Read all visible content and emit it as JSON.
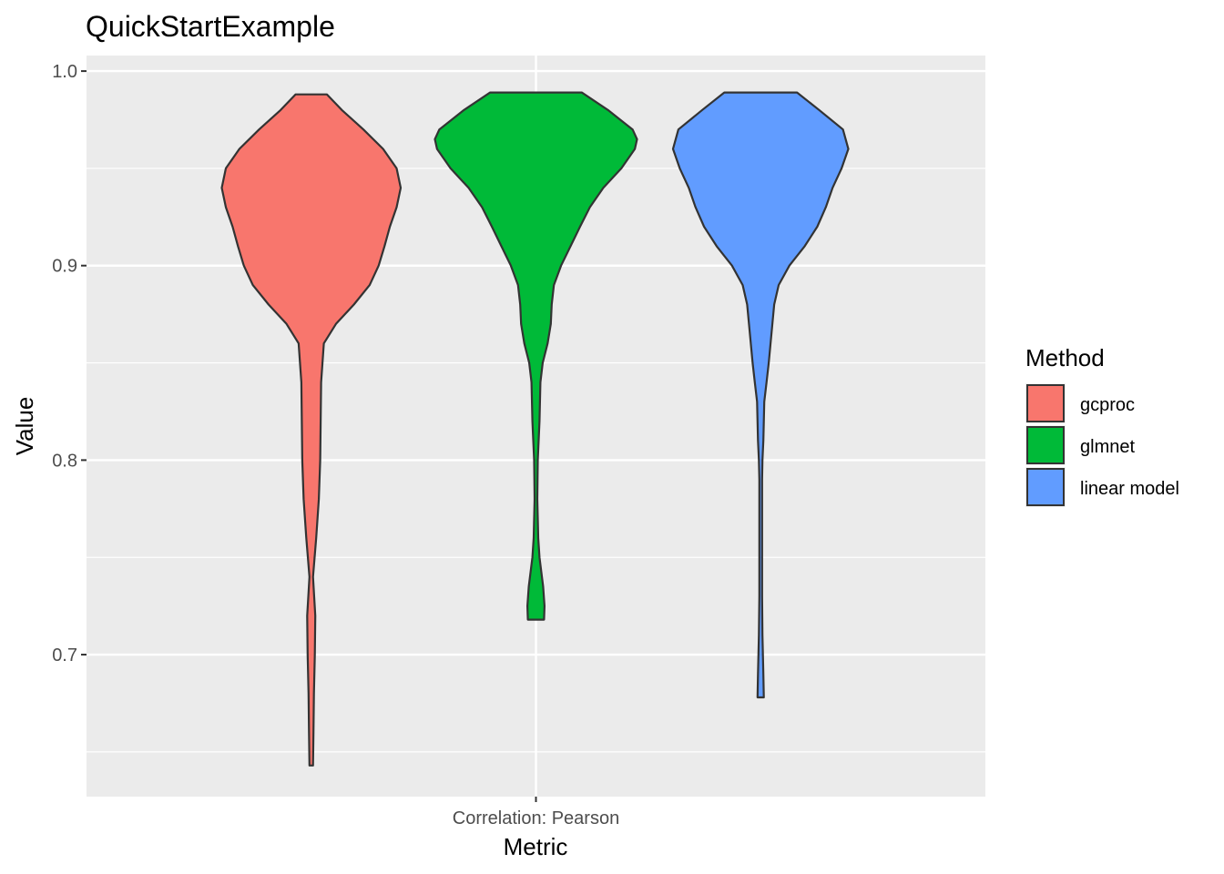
{
  "chart_data": {
    "type": "violin",
    "title": "QuickStartExample",
    "xlabel": "Metric",
    "ylabel": "Value",
    "categories": [
      "Correlation: Pearson"
    ],
    "ylim": [
      0.627,
      1.008
    ],
    "y_ticks": [
      "0.7",
      "0.8",
      "0.9",
      "1.0"
    ],
    "grid": true,
    "legend": {
      "title": "Method",
      "position": "right",
      "entries": [
        "gcproc",
        "glmnet",
        "linear model"
      ]
    },
    "series": [
      {
        "name": "gcproc",
        "color": "#F8766D",
        "min": 0.643,
        "max": 0.988,
        "profile": [
          [
            0.643,
            0.004
          ],
          [
            0.66,
            0.005
          ],
          [
            0.68,
            0.006
          ],
          [
            0.7,
            0.008
          ],
          [
            0.72,
            0.009
          ],
          [
            0.74,
            0.004
          ],
          [
            0.76,
            0.011
          ],
          [
            0.78,
            0.017
          ],
          [
            0.8,
            0.02
          ],
          [
            0.82,
            0.021
          ],
          [
            0.84,
            0.022
          ],
          [
            0.86,
            0.028
          ],
          [
            0.87,
            0.055
          ],
          [
            0.88,
            0.095
          ],
          [
            0.89,
            0.13
          ],
          [
            0.9,
            0.15
          ],
          [
            0.91,
            0.163
          ],
          [
            0.92,
            0.175
          ],
          [
            0.93,
            0.19
          ],
          [
            0.94,
            0.199
          ],
          [
            0.95,
            0.19
          ],
          [
            0.96,
            0.16
          ],
          [
            0.97,
            0.116
          ],
          [
            0.98,
            0.068
          ],
          [
            0.988,
            0.035
          ]
        ]
      },
      {
        "name": "glmnet",
        "color": "#00BA38",
        "min": 0.718,
        "max": 0.989,
        "profile": [
          [
            0.718,
            0.018
          ],
          [
            0.725,
            0.019
          ],
          [
            0.735,
            0.016
          ],
          [
            0.75,
            0.008
          ],
          [
            0.76,
            0.005
          ],
          [
            0.78,
            0.003
          ],
          [
            0.8,
            0.004
          ],
          [
            0.82,
            0.008
          ],
          [
            0.84,
            0.01
          ],
          [
            0.85,
            0.015
          ],
          [
            0.86,
            0.026
          ],
          [
            0.87,
            0.033
          ],
          [
            0.88,
            0.035
          ],
          [
            0.89,
            0.04
          ],
          [
            0.9,
            0.056
          ],
          [
            0.91,
            0.077
          ],
          [
            0.92,
            0.098
          ],
          [
            0.93,
            0.12
          ],
          [
            0.94,
            0.15
          ],
          [
            0.95,
            0.19
          ],
          [
            0.96,
            0.22
          ],
          [
            0.965,
            0.225
          ],
          [
            0.97,
            0.215
          ],
          [
            0.98,
            0.16
          ],
          [
            0.989,
            0.102
          ]
        ]
      },
      {
        "name": "linear model",
        "color": "#619CFF",
        "min": 0.678,
        "max": 0.989,
        "profile": [
          [
            0.678,
            0.007
          ],
          [
            0.69,
            0.006
          ],
          [
            0.71,
            0.004
          ],
          [
            0.73,
            0.003
          ],
          [
            0.75,
            0.002
          ],
          [
            0.77,
            0.002
          ],
          [
            0.79,
            0.002
          ],
          [
            0.8,
            0.004
          ],
          [
            0.81,
            0.006
          ],
          [
            0.82,
            0.007
          ],
          [
            0.83,
            0.008
          ],
          [
            0.84,
            0.013
          ],
          [
            0.85,
            0.018
          ],
          [
            0.86,
            0.022
          ],
          [
            0.87,
            0.026
          ],
          [
            0.88,
            0.03
          ],
          [
            0.89,
            0.04
          ],
          [
            0.9,
            0.064
          ],
          [
            0.91,
            0.098
          ],
          [
            0.92,
            0.126
          ],
          [
            0.93,
            0.145
          ],
          [
            0.94,
            0.16
          ],
          [
            0.95,
            0.18
          ],
          [
            0.96,
            0.195
          ],
          [
            0.97,
            0.183
          ],
          [
            0.98,
            0.13
          ],
          [
            0.989,
            0.081
          ]
        ]
      }
    ]
  }
}
